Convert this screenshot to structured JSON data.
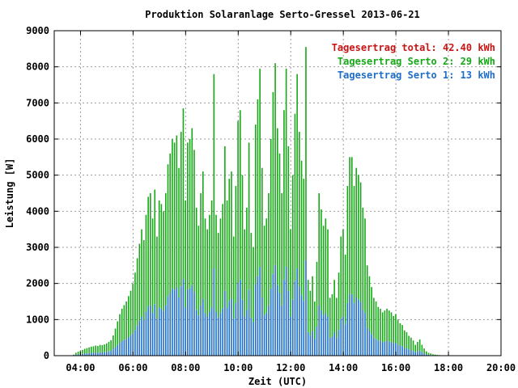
{
  "chart_data": {
    "type": "bar",
    "title": "Produktion Solaranlage Serto-Gressel 2013-06-21",
    "xlabel": "Zeit (UTC)",
    "ylabel": "Leistung [W]",
    "x_range": [
      "03:00",
      "20:00"
    ],
    "xlim_hours": [
      3,
      20
    ],
    "ylim": [
      0,
      9000
    ],
    "x_ticks": [
      "04:00",
      "06:00",
      "08:00",
      "10:00",
      "12:00",
      "14:00",
      "16:00",
      "18:00",
      "20:00"
    ],
    "y_ticks": [
      "0",
      "1000",
      "2000",
      "3000",
      "4000",
      "5000",
      "6000",
      "7000",
      "8000",
      "9000"
    ],
    "grid": true,
    "legend_position": "top-right",
    "stacked": true,
    "interval": "5 min",
    "x_start": "03:45",
    "series": [
      {
        "key": "serto1",
        "name": "Tagesertrag Serto 1: 13 kWh",
        "color": "#1e6ec8"
      },
      {
        "key": "serto2",
        "name": "Tagesertrag Serto 2: 29 kWh",
        "color": "#17a817"
      },
      {
        "key": "total",
        "name": "Tagesertrag total: 42.40 kWh",
        "color": "#c81414"
      }
    ],
    "total_values": [
      30,
      80,
      110,
      130,
      160,
      190,
      210,
      230,
      250,
      260,
      280,
      270,
      300,
      290,
      310,
      340,
      380,
      430,
      560,
      750,
      950,
      1150,
      1300,
      1400,
      1500,
      1650,
      1800,
      2000,
      2300,
      2700,
      3100,
      3500,
      3200,
      3900,
      4400,
      4500,
      3800,
      4600,
      3300,
      4300,
      4200,
      4000,
      4500,
      5300,
      5600,
      6000,
      5900,
      6100,
      5200,
      6200,
      6850,
      4300,
      5900,
      6000,
      6300,
      5700,
      4100,
      3600,
      4500,
      5100,
      3800,
      3500,
      3900,
      4300,
      7800,
      3900,
      3400,
      3800,
      4200,
      5800,
      4300,
      4900,
      5100,
      3300,
      4700,
      6500,
      6800,
      5000,
      3500,
      4100,
      5900,
      3400,
      3000,
      6400,
      7100,
      7950,
      5200,
      3600,
      3800,
      4500,
      6000,
      7300,
      8100,
      6300,
      5600,
      4500,
      6800,
      7950,
      5800,
      3500,
      5000,
      6700,
      7800,
      6200,
      5400,
      4900,
      8550,
      2100,
      1800,
      2200,
      1500,
      2600,
      4500,
      4050,
      3600,
      3800,
      3500,
      1600,
      1700,
      2100,
      1600,
      2300,
      3300,
      3500,
      2800,
      4700,
      5500,
      5500,
      4700,
      5200,
      5000,
      4800,
      4100,
      3800,
      2500,
      2200,
      1900,
      1600,
      1500,
      1350,
      1300,
      1200,
      1250,
      1300,
      1250,
      1200,
      1100,
      1150,
      1000,
      900,
      850,
      700,
      650,
      550,
      500,
      420,
      300,
      380,
      450,
      300,
      200,
      120,
      80,
      60,
      40,
      30,
      20,
      15,
      10,
      5
    ],
    "serto2_share": 0.69
  }
}
